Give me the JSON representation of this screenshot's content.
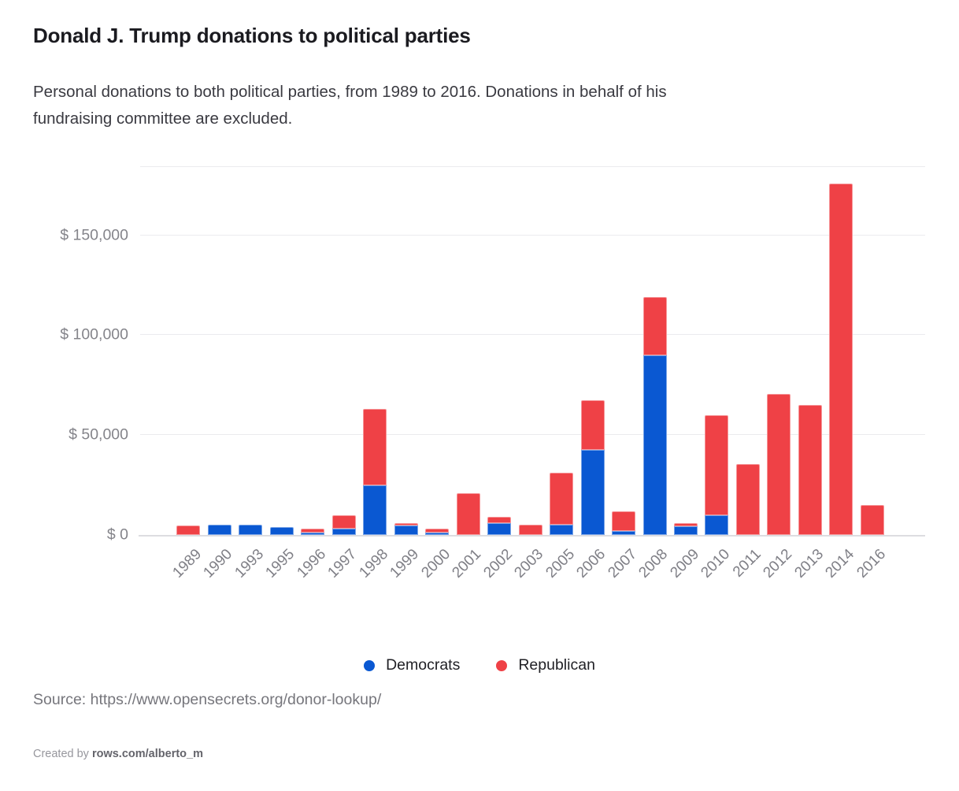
{
  "header": {
    "title": "Donald J. Trump donations to political parties",
    "subtitle": "Personal donations to both political parties, from 1989 to 2016. Donations in behalf of his\nfundraising committee are excluded."
  },
  "chart_data": {
    "type": "bar",
    "stacked": true,
    "grid": true,
    "legend_position": "bottom",
    "categories": [
      "1989",
      "1990",
      "1993",
      "1995",
      "1996",
      "1997",
      "1998",
      "1999",
      "2000",
      "2001",
      "2002",
      "2003",
      "2005",
      "2006",
      "2007",
      "2008",
      "2009",
      "2010",
      "2011",
      "2012",
      "2013",
      "2014",
      "2016"
    ],
    "series": [
      {
        "name": "Democrats",
        "color": "#0a58d2",
        "values": [
          0,
          5000,
          5000,
          4000,
          1000,
          3000,
          25000,
          4750,
          1250,
          0,
          6000,
          0,
          5000,
          42500,
          2000,
          90000,
          4500,
          10000,
          0,
          0,
          0,
          0,
          0
        ]
      },
      {
        "name": "Republican",
        "color": "#ef4146",
        "values": [
          4750,
          0,
          0,
          0,
          2000,
          7000,
          38000,
          1000,
          2000,
          21000,
          3000,
          5000,
          26000,
          25000,
          10000,
          29000,
          1500,
          50000,
          35500,
          70500,
          65000,
          176000,
          15000
        ]
      }
    ],
    "y_ticks": [
      {
        "label": "$ 0",
        "value": 0
      },
      {
        "label": "$ 50,000",
        "value": 50000
      },
      {
        "label": "$ 100,000",
        "value": 100000
      },
      {
        "label": "$ 150,000",
        "value": 150000
      }
    ],
    "ylim": [
      0,
      184500
    ],
    "xlabel": "",
    "ylabel": ""
  },
  "legend": {
    "items": [
      {
        "label": "Democrats",
        "color": "#0a58d2"
      },
      {
        "label": "Republican",
        "color": "#ef4146"
      }
    ]
  },
  "footer": {
    "source": "Source: https://www.opensecrets.org/donor-lookup/",
    "created_by_prefix": "Created by ",
    "created_by_handle": "rows.com/alberto_m"
  }
}
